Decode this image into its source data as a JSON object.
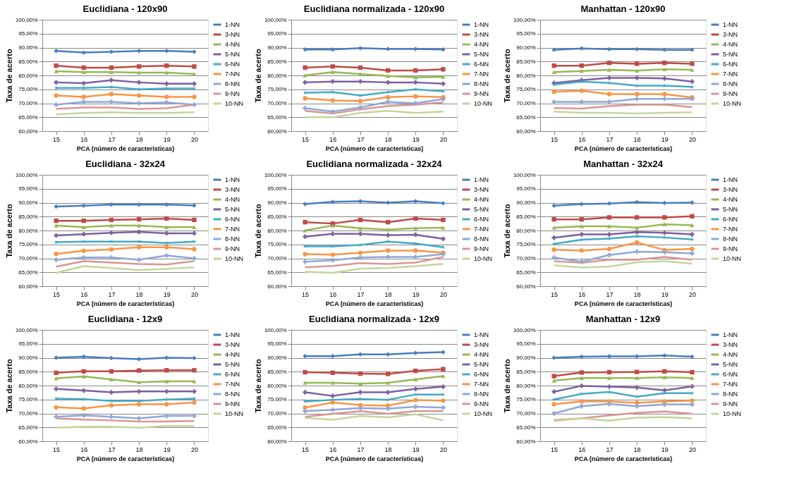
{
  "chart_data": [
    {
      "type": "line",
      "title": "Euclidiana - 120x90",
      "xlabel": "PCA (número de características)",
      "ylabel": "Taxa de acerto",
      "categories": [
        "15",
        "16",
        "17",
        "18",
        "19",
        "20"
      ],
      "ylim": [
        60,
        100
      ],
      "yticks": [
        {
          "value": 60,
          "label": "60,00%"
        },
        {
          "value": 65,
          "label": "65,00%"
        },
        {
          "value": 70,
          "label": "70,00%"
        },
        {
          "value": 75,
          "label": "75,00%"
        },
        {
          "value": 80,
          "label": "80,00%"
        },
        {
          "value": 85,
          "label": "85,00%"
        },
        {
          "value": 90,
          "label": "90,00%"
        },
        {
          "value": 95,
          "label": "95,00%"
        },
        {
          "value": 100,
          "label": "100,00%"
        }
      ],
      "grid": "y",
      "legend": "right",
      "series": [
        {
          "name": "1-NN",
          "color": "#4a7ebb",
          "marker": "diamond",
          "values": [
            88.8,
            88.2,
            88.5,
            88.8,
            88.8,
            88.5
          ]
        },
        {
          "name": "3-NN",
          "color": "#be4b48",
          "marker": "square",
          "values": [
            83.5,
            82.8,
            82.8,
            83.2,
            83.5,
            83.2
          ]
        },
        {
          "name": "4-NN",
          "color": "#98b954",
          "marker": "triangle",
          "values": [
            81.5,
            81.2,
            81.2,
            81.0,
            81.0,
            80.5
          ]
        },
        {
          "name": "5-NN",
          "color": "#7d60a0",
          "marker": "cross",
          "values": [
            77.5,
            77.2,
            78.3,
            77.5,
            77.0,
            77.0
          ]
        },
        {
          "name": "6-NN",
          "color": "#46aac5",
          "marker": "star",
          "values": [
            75.5,
            75.5,
            75.8,
            75.0,
            75.3,
            75.3
          ]
        },
        {
          "name": "7-NN",
          "color": "#f79646",
          "marker": "circle",
          "values": [
            72.8,
            72.3,
            73.3,
            72.8,
            72.3,
            72.3
          ]
        },
        {
          "name": "8-NN",
          "color": "#8fa8d8",
          "marker": "cross",
          "values": [
            69.5,
            70.5,
            70.5,
            70.0,
            70.3,
            69.5
          ]
        },
        {
          "name": "9-NN",
          "color": "#d99694",
          "marker": "none",
          "values": [
            68.0,
            68.5,
            68.5,
            68.0,
            68.2,
            69.5
          ]
        },
        {
          "name": "10-NN",
          "color": "#c3d69b",
          "marker": "none",
          "values": [
            66.0,
            66.5,
            66.8,
            66.5,
            66.5,
            66.8
          ]
        }
      ]
    },
    {
      "type": "line",
      "title": "Euclidiana normalizada - 120x90",
      "xlabel": "PCA (número de características)",
      "ylabel": "Taxa de acerto",
      "categories": [
        "15",
        "16",
        "17",
        "18",
        "19",
        "20"
      ],
      "ylim": [
        60,
        100
      ],
      "yticks": [
        {
          "value": 60,
          "label": "60,00%"
        },
        {
          "value": 65,
          "label": "65,00%"
        },
        {
          "value": 70,
          "label": "70,00%"
        },
        {
          "value": 75,
          "label": "75,00%"
        },
        {
          "value": 80,
          "label": "80,00%"
        },
        {
          "value": 85,
          "label": "85,00%"
        },
        {
          "value": 90,
          "label": "90,00%"
        },
        {
          "value": 95,
          "label": "95,00%"
        },
        {
          "value": 100,
          "label": "100,00%"
        }
      ],
      "grid": "y",
      "legend": "right",
      "series": [
        {
          "name": "1-NN",
          "color": "#4a7ebb",
          "marker": "diamond",
          "values": [
            89.3,
            89.3,
            89.8,
            89.5,
            89.5,
            89.3
          ]
        },
        {
          "name": "3-NN",
          "color": "#be4b48",
          "marker": "square",
          "values": [
            82.8,
            83.2,
            82.8,
            81.8,
            81.8,
            82.2
          ]
        },
        {
          "name": "4-NN",
          "color": "#98b954",
          "marker": "triangle",
          "values": [
            80.0,
            81.2,
            80.5,
            79.8,
            79.3,
            79.5
          ]
        },
        {
          "name": "5-NN",
          "color": "#7d60a0",
          "marker": "cross",
          "values": [
            77.5,
            77.8,
            77.8,
            77.5,
            77.5,
            77.0
          ]
        },
        {
          "name": "6-NN",
          "color": "#46aac5",
          "marker": "star",
          "values": [
            73.8,
            74.0,
            72.8,
            74.0,
            75.0,
            74.3
          ]
        },
        {
          "name": "7-NN",
          "color": "#f79646",
          "marker": "circle",
          "values": [
            71.8,
            71.0,
            70.8,
            72.2,
            72.5,
            72.2
          ]
        },
        {
          "name": "8-NN",
          "color": "#8fa8d8",
          "marker": "cross",
          "values": [
            68.2,
            67.0,
            68.5,
            70.5,
            70.0,
            71.5
          ]
        },
        {
          "name": "9-NN",
          "color": "#d99694",
          "marker": "none",
          "values": [
            67.3,
            66.3,
            67.8,
            69.0,
            69.5,
            70.3
          ]
        },
        {
          "name": "10-NN",
          "color": "#c3d69b",
          "marker": "none",
          "values": [
            65.0,
            65.0,
            66.5,
            67.3,
            66.5,
            67.0
          ]
        }
      ]
    },
    {
      "type": "line",
      "title": "Manhattan - 120x90",
      "xlabel": "PCA (número de características)",
      "ylabel": "Taxa de acerto",
      "categories": [
        "15",
        "16",
        "17",
        "18",
        "19",
        "20"
      ],
      "ylim": [
        60,
        100
      ],
      "yticks": [
        {
          "value": 60,
          "label": "60,00%"
        },
        {
          "value": 65,
          "label": "65,00%"
        },
        {
          "value": 70,
          "label": "70,00%"
        },
        {
          "value": 75,
          "label": "75,00%"
        },
        {
          "value": 80,
          "label": "80,00%"
        },
        {
          "value": 85,
          "label": "85,00%"
        },
        {
          "value": 90,
          "label": "90,00%"
        },
        {
          "value": 95,
          "label": "95,00%"
        },
        {
          "value": 100,
          "label": "100,00%"
        }
      ],
      "grid": "y",
      "legend": "right",
      "series": [
        {
          "name": "1-NN",
          "color": "#4a7ebb",
          "marker": "diamond",
          "values": [
            89.2,
            89.7,
            89.4,
            89.4,
            89.2,
            89.2
          ]
        },
        {
          "name": "3-NN",
          "color": "#be4b48",
          "marker": "square",
          "values": [
            83.5,
            83.5,
            84.5,
            84.2,
            84.5,
            84.2
          ]
        },
        {
          "name": "4-NN",
          "color": "#98b954",
          "marker": "triangle",
          "values": [
            81.2,
            81.6,
            82.0,
            81.7,
            82.2,
            82.0
          ]
        },
        {
          "name": "5-NN",
          "color": "#7d60a0",
          "marker": "cross",
          "values": [
            77.3,
            78.3,
            79.1,
            79.1,
            78.9,
            77.8
          ]
        },
        {
          "name": "6-NN",
          "color": "#46aac5",
          "marker": "star",
          "values": [
            76.7,
            77.8,
            77.3,
            76.3,
            76.3,
            75.9
          ]
        },
        {
          "name": "7-NN",
          "color": "#f79646",
          "marker": "circle",
          "values": [
            74.1,
            74.5,
            73.3,
            73.3,
            73.3,
            72.1
          ]
        },
        {
          "name": "8-NN",
          "color": "#8fa8d8",
          "marker": "cross",
          "values": [
            70.5,
            70.5,
            70.5,
            71.6,
            71.6,
            71.6
          ]
        },
        {
          "name": "9-NN",
          "color": "#d99694",
          "marker": "none",
          "values": [
            68.3,
            68.1,
            69.0,
            69.5,
            69.5,
            68.6
          ]
        },
        {
          "name": "10-NN",
          "color": "#c3d69b",
          "marker": "none",
          "values": [
            67.0,
            66.6,
            66.6,
            66.3,
            66.6,
            66.8
          ]
        }
      ]
    },
    {
      "type": "line",
      "title": "Euclidiana - 32x24",
      "xlabel": "PCA (número de características)",
      "ylabel": "Taxa de acerto",
      "categories": [
        "15",
        "16",
        "17",
        "18",
        "19",
        "20"
      ],
      "ylim": [
        60,
        100
      ],
      "yticks": [
        {
          "value": 60,
          "label": "60,00%"
        },
        {
          "value": 65,
          "label": "65,00%"
        },
        {
          "value": 70,
          "label": "70,00%"
        },
        {
          "value": 75,
          "label": "75,00%"
        },
        {
          "value": 80,
          "label": "80,00%"
        },
        {
          "value": 85,
          "label": "85,00%"
        },
        {
          "value": 90,
          "label": "90,00%"
        },
        {
          "value": 95,
          "label": "95,00%"
        },
        {
          "value": 100,
          "label": "100,00%"
        }
      ],
      "grid": "y",
      "legend": "right",
      "series": [
        {
          "name": "1-NN",
          "color": "#4a7ebb",
          "marker": "diamond",
          "values": [
            88.6,
            88.9,
            89.3,
            89.3,
            89.3,
            89.0
          ]
        },
        {
          "name": "3-NN",
          "color": "#be4b48",
          "marker": "square",
          "values": [
            83.5,
            83.5,
            83.8,
            84.0,
            84.3,
            83.8
          ]
        },
        {
          "name": "4-NN",
          "color": "#98b954",
          "marker": "triangle",
          "values": [
            81.8,
            81.2,
            81.8,
            81.8,
            81.2,
            81.2
          ]
        },
        {
          "name": "5-NN",
          "color": "#7d60a0",
          "marker": "cross",
          "values": [
            78.2,
            78.7,
            79.2,
            79.5,
            79.0,
            79.0
          ]
        },
        {
          "name": "6-NN",
          "color": "#46aac5",
          "marker": "star",
          "values": [
            75.8,
            76.0,
            76.0,
            76.0,
            75.5,
            76.0
          ]
        },
        {
          "name": "7-NN",
          "color": "#f79646",
          "marker": "circle",
          "values": [
            71.6,
            72.7,
            73.2,
            74.0,
            74.0,
            73.3
          ]
        },
        {
          "name": "8-NN",
          "color": "#8fa8d8",
          "marker": "cross",
          "values": [
            69.5,
            70.3,
            70.3,
            69.5,
            71.0,
            70.0
          ]
        },
        {
          "name": "9-NN",
          "color": "#d99694",
          "marker": "none",
          "values": [
            67.0,
            69.0,
            68.5,
            68.0,
            67.8,
            69.0
          ]
        },
        {
          "name": "10-NN",
          "color": "#c3d69b",
          "marker": "none",
          "values": [
            64.8,
            67.2,
            66.5,
            65.8,
            66.2,
            66.8
          ]
        }
      ]
    },
    {
      "type": "line",
      "title": "Euclidiana normalizada - 32x24",
      "xlabel": "PCA (número de características)",
      "ylabel": "Taxa de acerto",
      "categories": [
        "15",
        "16",
        "17",
        "18",
        "19",
        "20"
      ],
      "ylim": [
        60,
        100
      ],
      "yticks": [
        {
          "value": 60,
          "label": "60,00%"
        },
        {
          "value": 65,
          "label": "65,00%"
        },
        {
          "value": 70,
          "label": "70,00%"
        },
        {
          "value": 75,
          "label": "75,00%"
        },
        {
          "value": 80,
          "label": "80,00%"
        },
        {
          "value": 85,
          "label": "85,00%"
        },
        {
          "value": 90,
          "label": "90,00%"
        },
        {
          "value": 95,
          "label": "95,00%"
        },
        {
          "value": 100,
          "label": "100,00%"
        }
      ],
      "grid": "y",
      "legend": "right",
      "series": [
        {
          "name": "1-NN",
          "color": "#4a7ebb",
          "marker": "diamond",
          "values": [
            89.5,
            90.3,
            90.5,
            90.0,
            90.5,
            89.8
          ]
        },
        {
          "name": "3-NN",
          "color": "#be4b48",
          "marker": "square",
          "values": [
            83.0,
            82.5,
            83.8,
            83.0,
            84.3,
            83.8
          ]
        },
        {
          "name": "4-NN",
          "color": "#98b954",
          "marker": "triangle",
          "values": [
            80.0,
            81.8,
            80.8,
            80.3,
            80.8,
            81.0
          ]
        },
        {
          "name": "5-NN",
          "color": "#7d60a0",
          "marker": "cross",
          "values": [
            77.8,
            78.8,
            78.8,
            78.3,
            78.5,
            77.0
          ]
        },
        {
          "name": "6-NN",
          "color": "#46aac5",
          "marker": "star",
          "values": [
            74.3,
            74.3,
            74.8,
            76.0,
            75.3,
            74.0
          ]
        },
        {
          "name": "7-NN",
          "color": "#f79646",
          "marker": "circle",
          "values": [
            71.5,
            71.3,
            72.0,
            72.8,
            72.8,
            72.0
          ]
        },
        {
          "name": "8-NN",
          "color": "#8fa8d8",
          "marker": "cross",
          "values": [
            68.8,
            69.3,
            70.3,
            70.5,
            70.5,
            71.5
          ]
        },
        {
          "name": "9-NN",
          "color": "#d99694",
          "marker": "none",
          "values": [
            66.8,
            67.3,
            68.3,
            68.0,
            68.5,
            70.5
          ]
        },
        {
          "name": "10-NN",
          "color": "#c3d69b",
          "marker": "none",
          "values": [
            65.2,
            64.8,
            66.3,
            66.5,
            67.2,
            68.0
          ]
        }
      ]
    },
    {
      "type": "line",
      "title": "Manhattan - 32x24",
      "xlabel": "PCA (número de características)",
      "ylabel": "Taxa de acerto",
      "categories": [
        "15",
        "16",
        "17",
        "18",
        "19",
        "20"
      ],
      "ylim": [
        60,
        100
      ],
      "yticks": [
        {
          "value": 60,
          "label": "60,00%"
        },
        {
          "value": 65,
          "label": "65,00%"
        },
        {
          "value": 70,
          "label": "70,00%"
        },
        {
          "value": 75,
          "label": "75,00%"
        },
        {
          "value": 80,
          "label": "80,00%"
        },
        {
          "value": 85,
          "label": "85,00%"
        },
        {
          "value": 90,
          "label": "90,00%"
        },
        {
          "value": 95,
          "label": "95,00%"
        },
        {
          "value": 100,
          "label": "100,00%"
        }
      ],
      "grid": "y",
      "legend": "right",
      "series": [
        {
          "name": "1-NN",
          "color": "#4a7ebb",
          "marker": "diamond",
          "values": [
            88.9,
            89.5,
            89.7,
            90.2,
            89.9,
            90.0
          ]
        },
        {
          "name": "3-NN",
          "color": "#be4b48",
          "marker": "square",
          "values": [
            84.0,
            84.0,
            84.7,
            84.7,
            84.7,
            85.1
          ]
        },
        {
          "name": "4-NN",
          "color": "#98b954",
          "marker": "triangle",
          "values": [
            81.0,
            81.5,
            81.5,
            81.0,
            82.2,
            81.9
          ]
        },
        {
          "name": "5-NN",
          "color": "#7d60a0",
          "marker": "cross",
          "values": [
            77.4,
            78.6,
            78.6,
            79.4,
            79.2,
            78.6
          ]
        },
        {
          "name": "6-NN",
          "color": "#46aac5",
          "marker": "star",
          "values": [
            75.2,
            76.7,
            77.1,
            77.9,
            77.5,
            76.8
          ]
        },
        {
          "name": "7-NN",
          "color": "#f79646",
          "marker": "circle",
          "values": [
            73.1,
            72.8,
            73.4,
            75.7,
            73.0,
            73.4
          ]
        },
        {
          "name": "8-NN",
          "color": "#8fa8d8",
          "marker": "cross",
          "values": [
            70.3,
            68.8,
            71.2,
            72.4,
            72.2,
            71.8
          ]
        },
        {
          "name": "9-NN",
          "color": "#d99694",
          "marker": "none",
          "values": [
            69.0,
            68.4,
            69.5,
            69.5,
            70.5,
            69.5
          ]
        },
        {
          "name": "10-NN",
          "color": "#c3d69b",
          "marker": "none",
          "values": [
            67.5,
            66.7,
            67.0,
            68.6,
            69.0,
            68.1
          ]
        }
      ]
    },
    {
      "type": "line",
      "title": "Euclidiana - 12x9",
      "xlabel": "PCA (número de características)",
      "ylabel": "Taxa de acerto",
      "categories": [
        "15",
        "16",
        "17",
        "18",
        "19",
        "20"
      ],
      "ylim": [
        60,
        100
      ],
      "yticks": [
        {
          "value": 60,
          "label": "60,00%"
        },
        {
          "value": 65,
          "label": "65,00%"
        },
        {
          "value": 70,
          "label": "70,00%"
        },
        {
          "value": 75,
          "label": "75,00%"
        },
        {
          "value": 80,
          "label": "80,00%"
        },
        {
          "value": 85,
          "label": "85,00%"
        },
        {
          "value": 90,
          "label": "90,00%"
        },
        {
          "value": 95,
          "label": "95,00%"
        },
        {
          "value": 100,
          "label": "100,00%"
        }
      ],
      "grid": "y",
      "legend": "right",
      "series": [
        {
          "name": "1-NN",
          "color": "#4a7ebb",
          "marker": "diamond",
          "values": [
            90.0,
            90.4,
            89.9,
            89.5,
            90.0,
            89.9
          ]
        },
        {
          "name": "3-NN",
          "color": "#be4b48",
          "marker": "square",
          "values": [
            84.6,
            85.1,
            85.1,
            85.4,
            85.5,
            85.5
          ]
        },
        {
          "name": "4-NN",
          "color": "#98b954",
          "marker": "triangle",
          "values": [
            82.6,
            83.3,
            82.2,
            81.2,
            81.5,
            81.5
          ]
        },
        {
          "name": "5-NN",
          "color": "#7d60a0",
          "marker": "cross",
          "values": [
            78.8,
            78.2,
            77.6,
            77.9,
            77.9,
            77.9
          ]
        },
        {
          "name": "6-NN",
          "color": "#46aac5",
          "marker": "star",
          "values": [
            75.3,
            75.1,
            74.5,
            74.5,
            75.0,
            75.3
          ]
        },
        {
          "name": "7-NN",
          "color": "#f79646",
          "marker": "circle",
          "values": [
            72.2,
            71.8,
            72.9,
            73.3,
            73.3,
            73.9
          ]
        },
        {
          "name": "8-NN",
          "color": "#8fa8d8",
          "marker": "cross",
          "values": [
            68.8,
            69.3,
            68.8,
            68.2,
            69.1,
            69.1
          ]
        },
        {
          "name": "9-NN",
          "color": "#d99694",
          "marker": "none",
          "values": [
            68.2,
            67.8,
            67.5,
            67.1,
            67.1,
            67.3
          ]
        },
        {
          "name": "10-NN",
          "color": "#c3d69b",
          "marker": "none",
          "values": [
            64.9,
            65.2,
            65.2,
            64.9,
            65.5,
            65.5
          ]
        }
      ]
    },
    {
      "type": "line",
      "title": "Euclidiana normalizada - 12x9",
      "xlabel": "PCA (número de características)",
      "ylabel": "Taxa de acerto",
      "categories": [
        "15",
        "16",
        "17",
        "18",
        "19",
        "20"
      ],
      "ylim": [
        60,
        100
      ],
      "yticks": [
        {
          "value": 60,
          "label": "60,00%"
        },
        {
          "value": 65,
          "label": "65,00%"
        },
        {
          "value": 70,
          "label": "70,00%"
        },
        {
          "value": 75,
          "label": "75,00%"
        },
        {
          "value": 80,
          "label": "80,00%"
        },
        {
          "value": 85,
          "label": "85,00%"
        },
        {
          "value": 90,
          "label": "90,00%"
        },
        {
          "value": 95,
          "label": "95,00%"
        },
        {
          "value": 100,
          "label": "100,00%"
        }
      ],
      "grid": "y",
      "legend": "right",
      "series": [
        {
          "name": "1-NN",
          "color": "#4a7ebb",
          "marker": "diamond",
          "values": [
            90.6,
            90.6,
            91.2,
            91.2,
            91.7,
            92.0
          ]
        },
        {
          "name": "3-NN",
          "color": "#be4b48",
          "marker": "square",
          "values": [
            84.8,
            84.6,
            84.3,
            84.2,
            85.3,
            85.9
          ]
        },
        {
          "name": "4-NN",
          "color": "#98b954",
          "marker": "triangle",
          "values": [
            81.0,
            81.0,
            80.7,
            81.0,
            82.2,
            83.4
          ]
        },
        {
          "name": "5-NN",
          "color": "#7d60a0",
          "marker": "cross",
          "values": [
            77.6,
            76.3,
            77.6,
            77.6,
            78.8,
            79.6
          ]
        },
        {
          "name": "6-NN",
          "color": "#46aac5",
          "marker": "star",
          "values": [
            74.3,
            74.9,
            75.2,
            74.9,
            76.8,
            76.8
          ]
        },
        {
          "name": "7-NN",
          "color": "#f79646",
          "marker": "circle",
          "values": [
            72.1,
            73.9,
            73.0,
            72.8,
            74.8,
            74.6
          ]
        },
        {
          "name": "8-NN",
          "color": "#8fa8d8",
          "marker": "cross",
          "values": [
            70.8,
            71.3,
            71.9,
            71.7,
            72.4,
            72.1
          ]
        },
        {
          "name": "9-NN",
          "color": "#d99694",
          "marker": "none",
          "values": [
            68.8,
            69.9,
            70.8,
            69.9,
            70.8,
            70.8
          ]
        },
        {
          "name": "10-NN",
          "color": "#c3d69b",
          "marker": "none",
          "values": [
            68.4,
            67.7,
            69.1,
            68.6,
            69.7,
            67.5
          ]
        }
      ]
    },
    {
      "type": "line",
      "title": "Manhattan - 12x9",
      "xlabel": "PCA (número de características)",
      "ylabel": "Taxa de acerto",
      "categories": [
        "15",
        "16",
        "17",
        "18",
        "19",
        "20"
      ],
      "ylim": [
        60,
        100
      ],
      "yticks": [
        {
          "value": 60,
          "label": "60,00%"
        },
        {
          "value": 65,
          "label": "65,00%"
        },
        {
          "value": 70,
          "label": "70,00%"
        },
        {
          "value": 75,
          "label": "75,00%"
        },
        {
          "value": 80,
          "label": "80,00%"
        },
        {
          "value": 85,
          "label": "85,00%"
        },
        {
          "value": 90,
          "label": "90,00%"
        },
        {
          "value": 95,
          "label": "95,00%"
        },
        {
          "value": 100,
          "label": "100,00%"
        }
      ],
      "grid": "y",
      "legend": "right",
      "series": [
        {
          "name": "1-NN",
          "color": "#4a7ebb",
          "marker": "diamond",
          "values": [
            90.0,
            90.4,
            90.5,
            90.5,
            90.8,
            90.4
          ]
        },
        {
          "name": "3-NN",
          "color": "#be4b48",
          "marker": "square",
          "values": [
            83.4,
            84.7,
            84.8,
            84.9,
            85.1,
            84.8
          ]
        },
        {
          "name": "4-NN",
          "color": "#98b954",
          "marker": "triangle",
          "values": [
            81.8,
            82.7,
            82.7,
            82.7,
            83.0,
            82.7
          ]
        },
        {
          "name": "5-NN",
          "color": "#7d60a0",
          "marker": "cross",
          "values": [
            77.8,
            79.9,
            79.6,
            79.3,
            78.3,
            79.7
          ]
        },
        {
          "name": "6-NN",
          "color": "#46aac5",
          "marker": "star",
          "values": [
            75.0,
            77.0,
            77.7,
            76.0,
            77.3,
            77.3
          ]
        },
        {
          "name": "7-NN",
          "color": "#f79646",
          "marker": "circle",
          "values": [
            73.3,
            74.3,
            74.3,
            73.8,
            74.3,
            74.6
          ]
        },
        {
          "name": "8-NN",
          "color": "#8fa8d8",
          "marker": "cross",
          "values": [
            70.0,
            72.6,
            73.4,
            72.6,
            73.2,
            73.2
          ]
        },
        {
          "name": "9-NN",
          "color": "#d99694",
          "marker": "none",
          "values": [
            67.6,
            68.2,
            69.3,
            70.2,
            70.7,
            69.9
          ]
        },
        {
          "name": "10-NN",
          "color": "#c3d69b",
          "marker": "none",
          "values": [
            67.3,
            68.2,
            67.4,
            68.5,
            68.7,
            68.2
          ]
        }
      ]
    }
  ]
}
